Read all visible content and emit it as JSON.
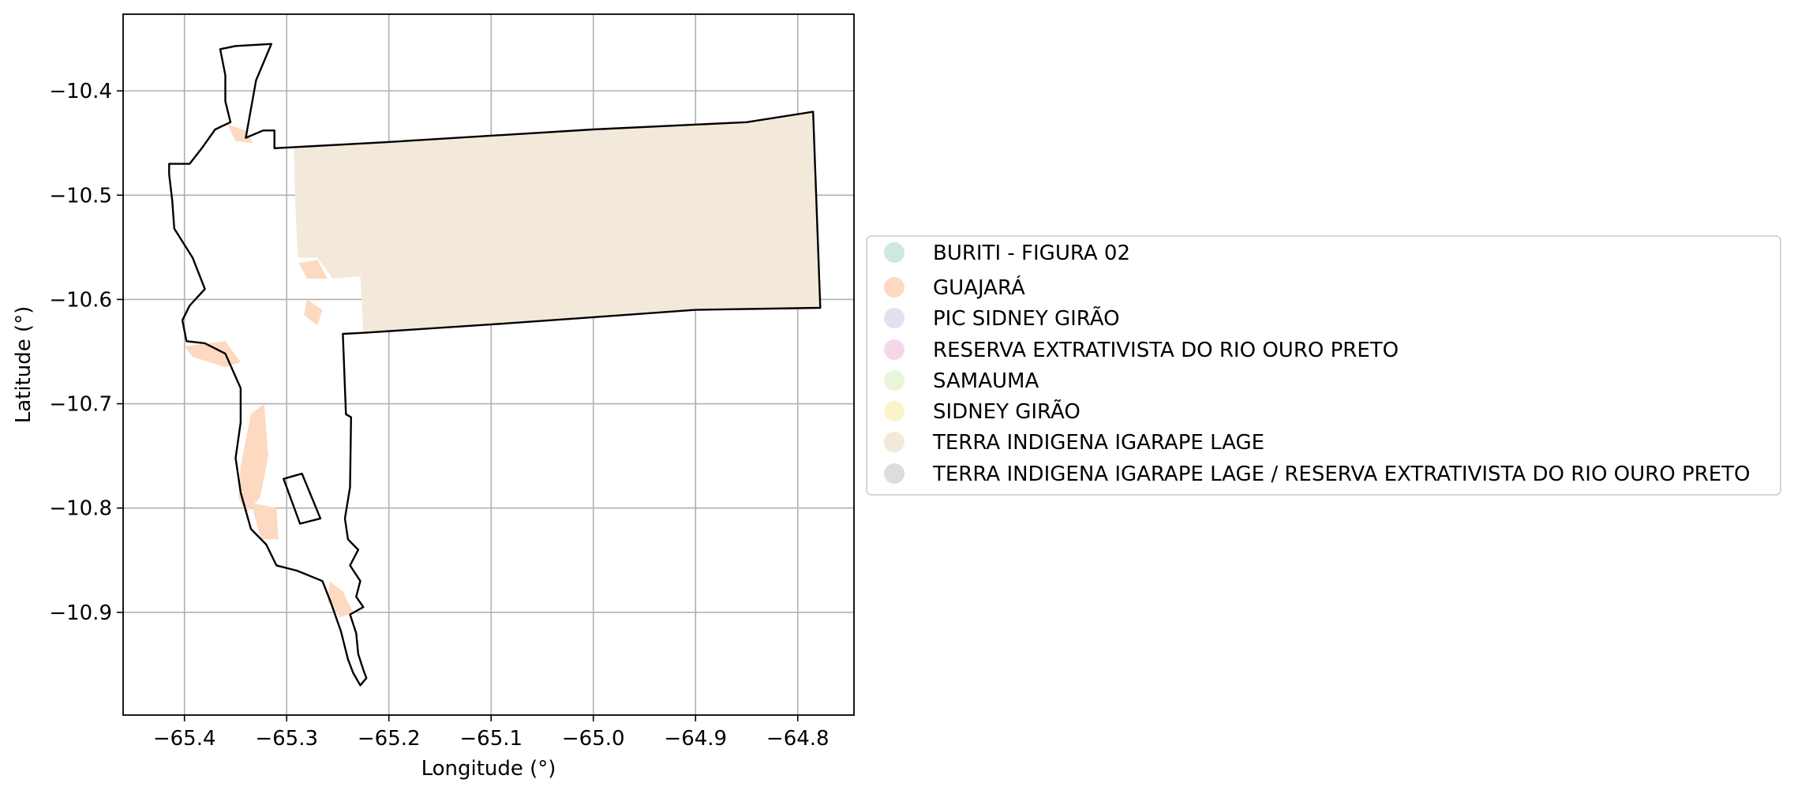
{
  "chart_data": {
    "type": "map",
    "xlabel": "Longitude (°)",
    "ylabel": "Latitude (°)",
    "xlim": [
      -65.46,
      -64.745
    ],
    "ylim": [
      -10.9985,
      -10.3265
    ],
    "grid": true,
    "legend_position": "right",
    "xticks": [
      {
        "value": -65.4,
        "label": "−65.4"
      },
      {
        "value": -65.3,
        "label": "−65.3"
      },
      {
        "value": -65.2,
        "label": "−65.2"
      },
      {
        "value": -65.1,
        "label": "−65.1"
      },
      {
        "value": -65.0,
        "label": "−65.0"
      },
      {
        "value": -64.9,
        "label": "−64.9"
      },
      {
        "value": -64.8,
        "label": "−64.8"
      }
    ],
    "yticks": [
      {
        "value": -10.4,
        "label": "−10.4"
      },
      {
        "value": -10.5,
        "label": "−10.5"
      },
      {
        "value": -10.6,
        "label": "−10.6"
      },
      {
        "value": -10.7,
        "label": "−10.7"
      },
      {
        "value": -10.8,
        "label": "−10.8"
      },
      {
        "value": -10.9,
        "label": "−10.9"
      }
    ],
    "legend": [
      {
        "label": "BURITI - FIGURA 02",
        "color": "#cde9dc"
      },
      {
        "label": "GUAJARÁ",
        "color": "#fdd9c2"
      },
      {
        "label": "PIC SIDNEY GIRÃO",
        "color": "#dfe2ee"
      },
      {
        "label": "RESERVA EXTRATIVISTA DO RIO OURO PRETO",
        "color": "#f5d7ea"
      },
      {
        "label": "SAMAUMA",
        "color": "#e9f5da"
      },
      {
        "label": "SIDNEY GIRÃO",
        "color": "#fdf3c8"
      },
      {
        "label": "TERRA INDIGENA IGARAPE LAGE",
        "color": "#f3e9db"
      },
      {
        "label": "TERRA INDIGENA IGARAPE LAGE / RESERVA EXTRATIVISTA DO RIO OURO PRETO",
        "color": "#dddddd"
      }
    ],
    "features": [
      {
        "name": "TERRA INDIGENA IGARAPE LAGE",
        "fill": "#f3e9db",
        "coords": [
          [
            -65.293,
            -10.455
          ],
          [
            -65.2,
            -10.449
          ],
          [
            -65.0,
            -10.437
          ],
          [
            -64.85,
            -10.43
          ],
          [
            -64.785,
            -10.42
          ],
          [
            -64.778,
            -10.608
          ],
          [
            -64.9,
            -10.61
          ],
          [
            -65.0,
            -10.617
          ],
          [
            -65.1,
            -10.624
          ],
          [
            -65.225,
            -10.632
          ],
          [
            -65.228,
            -10.578
          ],
          [
            -65.255,
            -10.58
          ],
          [
            -65.27,
            -10.56
          ],
          [
            -65.289,
            -10.56
          ],
          [
            -65.292,
            -10.5
          ]
        ]
      },
      {
        "name": "GUAJARÁ",
        "fill": "#fdd9c2",
        "coords": [
          [
            -65.345,
            -10.76
          ],
          [
            -65.335,
            -10.71
          ],
          [
            -65.322,
            -10.7
          ],
          [
            -65.318,
            -10.75
          ],
          [
            -65.326,
            -10.79
          ],
          [
            -65.34,
            -10.805
          ],
          [
            -65.347,
            -10.79
          ]
        ]
      },
      {
        "name": "GUAJARÁ",
        "fill": "#fdd9c2",
        "coords": [
          [
            -65.4,
            -10.645
          ],
          [
            -65.36,
            -10.64
          ],
          [
            -65.345,
            -10.66
          ],
          [
            -65.36,
            -10.665
          ],
          [
            -65.392,
            -10.655
          ]
        ]
      },
      {
        "name": "GUAJARÁ",
        "fill": "#fdd9c2",
        "coords": [
          [
            -65.358,
            -10.432
          ],
          [
            -65.34,
            -10.438
          ],
          [
            -65.333,
            -10.45
          ],
          [
            -65.35,
            -10.448
          ]
        ]
      },
      {
        "name": "GUAJARÁ",
        "fill": "#fdd9c2",
        "coords": [
          [
            -65.288,
            -10.565
          ],
          [
            -65.27,
            -10.562
          ],
          [
            -65.26,
            -10.58
          ],
          [
            -65.28,
            -10.58
          ]
        ]
      },
      {
        "name": "GUAJARÁ",
        "fill": "#fdd9c2",
        "coords": [
          [
            -65.335,
            -10.795
          ],
          [
            -65.31,
            -10.8
          ],
          [
            -65.308,
            -10.83
          ],
          [
            -65.325,
            -10.83
          ]
        ]
      },
      {
        "name": "GUAJARÁ",
        "fill": "#fdd9c2",
        "coords": [
          [
            -65.258,
            -10.87
          ],
          [
            -65.245,
            -10.88
          ],
          [
            -65.235,
            -10.9
          ],
          [
            -65.248,
            -10.905
          ],
          [
            -65.26,
            -10.89
          ]
        ]
      },
      {
        "name": "GUAJARÁ",
        "fill": "#fdd9c2",
        "coords": [
          [
            -65.28,
            -10.6
          ],
          [
            -65.265,
            -10.61
          ],
          [
            -65.27,
            -10.625
          ],
          [
            -65.283,
            -10.615
          ]
        ]
      }
    ],
    "outlines": [
      {
        "name": "outer-boundary",
        "coords": [
          [
            -65.315,
            -10.355
          ],
          [
            -65.33,
            -10.39
          ],
          [
            -65.34,
            -10.445
          ],
          [
            -65.323,
            -10.438
          ],
          [
            -65.312,
            -10.438
          ],
          [
            -65.312,
            -10.455
          ],
          [
            -65.2,
            -10.449
          ],
          [
            -65.0,
            -10.437
          ],
          [
            -64.85,
            -10.43
          ],
          [
            -64.785,
            -10.42
          ],
          [
            -64.778,
            -10.608
          ],
          [
            -64.9,
            -10.61
          ],
          [
            -65.0,
            -10.617
          ],
          [
            -65.1,
            -10.624
          ],
          [
            -65.225,
            -10.632
          ],
          [
            -65.245,
            -10.633
          ],
          [
            -65.242,
            -10.71
          ],
          [
            -65.237,
            -10.713
          ],
          [
            -65.238,
            -10.78
          ],
          [
            -65.243,
            -10.81
          ],
          [
            -65.24,
            -10.83
          ],
          [
            -65.23,
            -10.84
          ],
          [
            -65.238,
            -10.855
          ],
          [
            -65.228,
            -10.87
          ],
          [
            -65.232,
            -10.885
          ],
          [
            -65.225,
            -10.895
          ],
          [
            -65.238,
            -10.902
          ],
          [
            -65.232,
            -10.92
          ],
          [
            -65.23,
            -10.94
          ],
          [
            -65.225,
            -10.955
          ],
          [
            -65.222,
            -10.963
          ],
          [
            -65.228,
            -10.97
          ],
          [
            -65.235,
            -10.958
          ],
          [
            -65.24,
            -10.945
          ],
          [
            -65.247,
            -10.918
          ],
          [
            -65.257,
            -10.89
          ],
          [
            -65.265,
            -10.87
          ],
          [
            -65.29,
            -10.86
          ],
          [
            -65.31,
            -10.855
          ],
          [
            -65.32,
            -10.835
          ],
          [
            -65.335,
            -10.82
          ],
          [
            -65.345,
            -10.785
          ],
          [
            -65.35,
            -10.752
          ],
          [
            -65.345,
            -10.718
          ],
          [
            -65.345,
            -10.685
          ],
          [
            -65.36,
            -10.652
          ],
          [
            -65.38,
            -10.642
          ],
          [
            -65.398,
            -10.64
          ],
          [
            -65.402,
            -10.62
          ],
          [
            -65.395,
            -10.606
          ],
          [
            -65.38,
            -10.59
          ],
          [
            -65.392,
            -10.56
          ],
          [
            -65.41,
            -10.532
          ],
          [
            -65.412,
            -10.505
          ],
          [
            -65.415,
            -10.48
          ],
          [
            -65.415,
            -10.47
          ],
          [
            -65.395,
            -10.47
          ],
          [
            -65.383,
            -10.455
          ],
          [
            -65.37,
            -10.437
          ],
          [
            -65.355,
            -10.43
          ],
          [
            -65.36,
            -10.41
          ],
          [
            -65.36,
            -10.385
          ],
          [
            -65.365,
            -10.36
          ],
          [
            -65.35,
            -10.357
          ]
        ]
      },
      {
        "name": "small-enclave",
        "coords": [
          [
            -65.303,
            -10.772
          ],
          [
            -65.285,
            -10.767
          ],
          [
            -65.267,
            -10.81
          ],
          [
            -65.287,
            -10.815
          ]
        ]
      }
    ]
  }
}
